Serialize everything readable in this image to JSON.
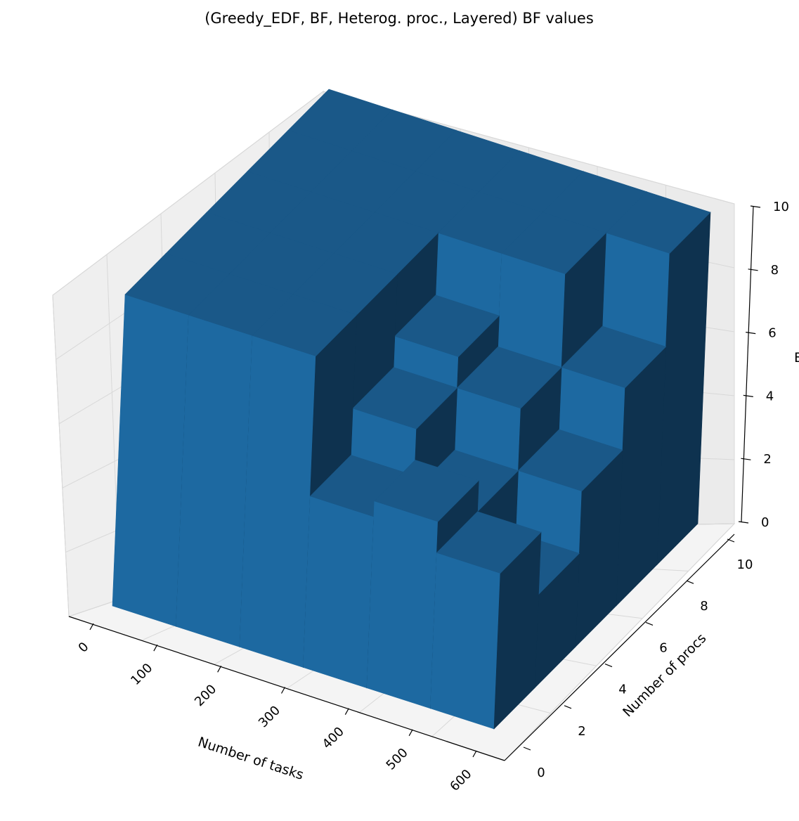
{
  "chart_data": {
    "type": "bar3d",
    "title": "(Greedy_EDF, BF, Heterog. proc., Layered) BF values",
    "xlabel": "Number of tasks",
    "ylabel": "Number of procs",
    "zlabel": "BF",
    "x_ticks": [
      "0",
      "100",
      "200",
      "300",
      "400",
      "500",
      "600"
    ],
    "y_ticks": [
      "0",
      "2",
      "4",
      "6",
      "8",
      "10"
    ],
    "z_ticks": [
      "0",
      "2",
      "4",
      "6",
      "8",
      "10"
    ],
    "xlim": [
      0,
      600
    ],
    "ylim": [
      0,
      10
    ],
    "zlim": [
      0,
      10
    ],
    "grid": true,
    "bar_color": "#1f6aa0",
    "bars_note_x_edges": [
      0,
      100,
      200,
      300,
      400,
      500,
      600
    ],
    "bars_note_y_edges": [
      0,
      2,
      4,
      6,
      8,
      10
    ],
    "heights": [
      [
        10,
        10,
        10,
        10,
        10
      ],
      [
        10,
        10,
        10,
        10,
        10
      ],
      [
        10,
        10,
        10,
        10,
        10
      ],
      [
        5.5,
        7,
        8,
        10,
        10
      ],
      [
        6,
        5,
        7,
        10,
        10
      ],
      [
        5,
        3,
        5,
        7,
        10
      ]
    ]
  }
}
